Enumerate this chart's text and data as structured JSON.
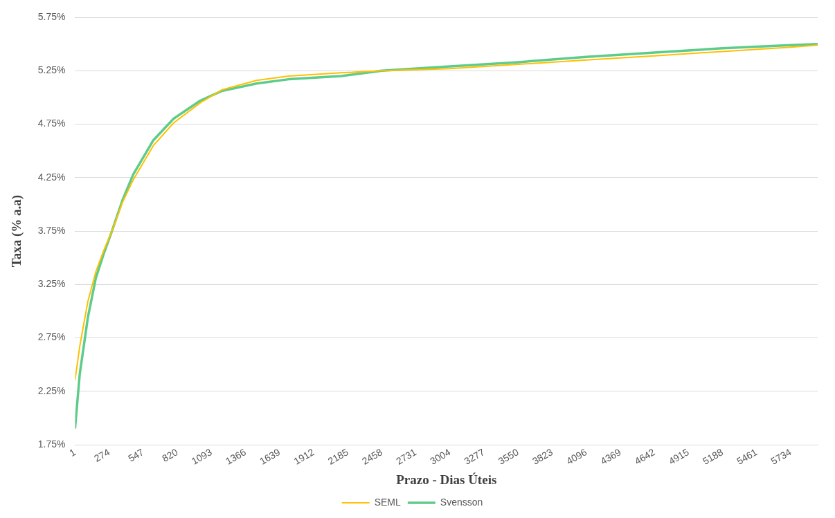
{
  "chart_data": {
    "type": "line",
    "xlabel": "Prazo - Dias Úteis",
    "ylabel": "Taxa (% a.a)",
    "xlim": [
      1,
      5950
    ],
    "xticks": [
      1,
      274,
      547,
      820,
      1093,
      1366,
      1639,
      1912,
      2185,
      2458,
      2731,
      3004,
      3277,
      3550,
      3823,
      4096,
      4369,
      4642,
      4915,
      5188,
      5461,
      5734
    ],
    "ylim": [
      1.75,
      5.75
    ],
    "yticks": [
      {
        "value": 1.75,
        "label": "1.75%"
      },
      {
        "value": 2.25,
        "label": "2.25%"
      },
      {
        "value": 2.75,
        "label": "2.75%"
      },
      {
        "value": 3.25,
        "label": "3.25%"
      },
      {
        "value": 3.75,
        "label": "3.75%"
      },
      {
        "value": 4.25,
        "label": "4.25%"
      },
      {
        "value": 4.75,
        "label": "4.75%"
      },
      {
        "value": 5.25,
        "label": "5.25%"
      },
      {
        "value": 5.75,
        "label": "5.75%"
      }
    ],
    "grid": "y",
    "legend": "bottom",
    "marker": "none",
    "line_style": "solid",
    "series": [
      {
        "name": "SEML",
        "color": "#ffc000",
        "x": [
          1,
          38,
          103,
          167,
          231,
          296,
          381,
          467,
          628,
          789,
          1004,
          1175,
          1454,
          1712,
          2130,
          2458,
          3004,
          3550,
          4096,
          4642,
          5188,
          5734,
          5950
        ],
        "values": [
          2.36,
          2.67,
          3.09,
          3.37,
          3.57,
          3.75,
          4.02,
          4.23,
          4.55,
          4.76,
          4.95,
          5.07,
          5.16,
          5.2,
          5.23,
          5.25,
          5.27,
          5.31,
          5.35,
          5.39,
          5.43,
          5.47,
          5.49
        ]
      },
      {
        "name": "Svensson",
        "color": "#5dcb8a",
        "x": [
          1,
          38,
          103,
          167,
          231,
          296,
          381,
          467,
          628,
          789,
          1004,
          1175,
          1454,
          1712,
          2130,
          2458,
          3004,
          3550,
          4096,
          4642,
          5188,
          5734,
          5950
        ],
        "values": [
          1.91,
          2.41,
          2.94,
          3.31,
          3.54,
          3.75,
          4.04,
          4.28,
          4.6,
          4.8,
          4.97,
          5.06,
          5.13,
          5.17,
          5.2,
          5.25,
          5.29,
          5.33,
          5.38,
          5.42,
          5.46,
          5.49,
          5.5
        ]
      }
    ]
  }
}
